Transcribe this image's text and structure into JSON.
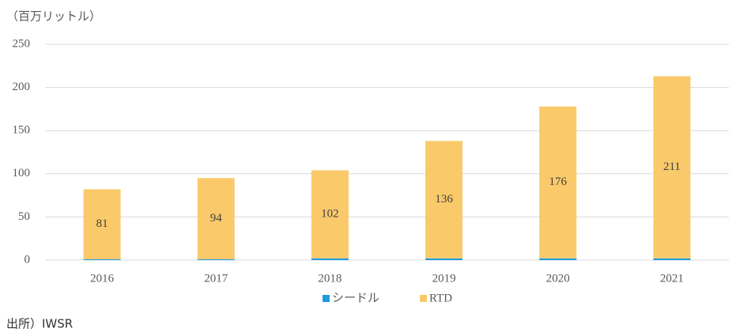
{
  "chart_data": {
    "type": "stacked_bar",
    "y_axis_label": "（百万リットル）",
    "source": "出所）IWSR",
    "categories": [
      "2016",
      "2017",
      "2018",
      "2019",
      "2020",
      "2021"
    ],
    "series": [
      {
        "name": "シードル",
        "color": "#1f9bde",
        "values": [
          1,
          1,
          2,
          2,
          2,
          2
        ]
      },
      {
        "name": "RTD",
        "color": "#f9c96a",
        "values": [
          81,
          94,
          102,
          136,
          176,
          211
        ]
      }
    ],
    "ylim": [
      0,
      250
    ],
    "yticks": [
      0,
      50,
      100,
      150,
      200,
      250
    ],
    "grid": true,
    "legend": "bottom"
  }
}
